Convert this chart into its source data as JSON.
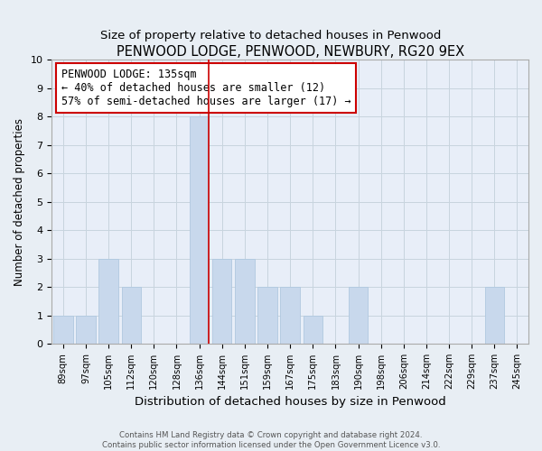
{
  "title": "PENWOOD LODGE, PENWOOD, NEWBURY, RG20 9EX",
  "subtitle": "Size of property relative to detached houses in Penwood",
  "xlabel": "Distribution of detached houses by size in Penwood",
  "ylabel": "Number of detached properties",
  "bin_labels": [
    "89sqm",
    "97sqm",
    "105sqm",
    "112sqm",
    "120sqm",
    "128sqm",
    "136sqm",
    "144sqm",
    "151sqm",
    "159sqm",
    "167sqm",
    "175sqm",
    "183sqm",
    "190sqm",
    "198sqm",
    "206sqm",
    "214sqm",
    "222sqm",
    "229sqm",
    "237sqm",
    "245sqm"
  ],
  "bar_heights": [
    1,
    1,
    3,
    2,
    0,
    0,
    8,
    3,
    3,
    2,
    2,
    1,
    0,
    2,
    0,
    0,
    0,
    0,
    0,
    2,
    0
  ],
  "bar_color": "#c8d8ec",
  "bar_edgecolor": "#b0c8e0",
  "highlight_index": 6,
  "highlight_line_color": "#cc0000",
  "annotation_line1": "PENWOOD LODGE: 135sqm",
  "annotation_line2": "← 40% of detached houses are smaller (12)",
  "annotation_line3": "57% of semi-detached houses are larger (17) →",
  "annotation_box_edgecolor": "#cc0000",
  "annotation_fontsize": 8.5,
  "ylim": [
    0,
    10
  ],
  "yticks": [
    0,
    1,
    2,
    3,
    4,
    5,
    6,
    7,
    8,
    9,
    10
  ],
  "footer1": "Contains HM Land Registry data © Crown copyright and database right 2024.",
  "footer2": "Contains public sector information licensed under the Open Government Licence v3.0.",
  "title_fontsize": 10.5,
  "subtitle_fontsize": 9.5,
  "xlabel_fontsize": 9.5,
  "ylabel_fontsize": 8.5,
  "background_color": "#e8eef4",
  "plot_background_color": "#e8eef8"
}
